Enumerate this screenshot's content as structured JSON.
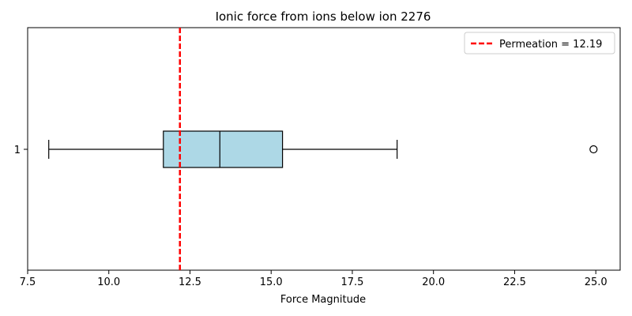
{
  "chart_data": {
    "type": "boxplot",
    "orientation": "horizontal",
    "title": "Ionic force from ions below ion 2276",
    "xlabel": "Force Magnitude",
    "ylabel": "",
    "xlim": [
      7.5,
      25.75
    ],
    "xticks": [
      7.5,
      10.0,
      12.5,
      15.0,
      17.5,
      20.0,
      22.5,
      25.0
    ],
    "xtick_labels": [
      "7.5",
      "10.0",
      "12.5",
      "15.0",
      "17.5",
      "20.0",
      "22.5",
      "25.0"
    ],
    "ytick_labels": [
      "1"
    ],
    "grid": false,
    "legend_position": "top-right",
    "box": {
      "label": "1",
      "whisker_low": 8.15,
      "q1": 11.68,
      "median": 13.42,
      "q3": 15.35,
      "whisker_high": 18.88,
      "outliers": [
        24.93
      ],
      "fill_color": "#add8e6",
      "edge_color": "#000000"
    },
    "reference_line": {
      "value": 12.19,
      "label": "Permeation = 12.19",
      "color": "#ff0000",
      "style": "dashed"
    }
  }
}
